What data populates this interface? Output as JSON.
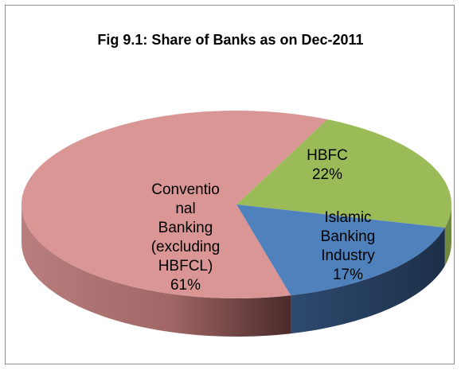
{
  "chart_data": {
    "type": "pie",
    "title": "Fig 9.1: Share of Banks as on Dec-2011",
    "slices": [
      {
        "label": [
          "HBFC",
          "22%"
        ],
        "value": 22,
        "color": "#9BBB59"
      },
      {
        "label": [
          "Islamic",
          "Banking",
          "Industry",
          "17%"
        ],
        "value": 17,
        "color": "#4F81BD"
      },
      {
        "label": [
          "Conventio",
          "nal",
          "Banking",
          "(excluding",
          "HBFCL)",
          "61%"
        ],
        "value": 61,
        "color": "#D99694"
      }
    ],
    "legend": "none",
    "style": "3d"
  }
}
